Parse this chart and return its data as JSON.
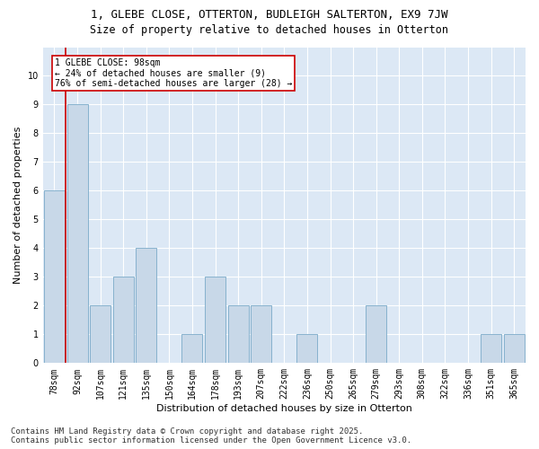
{
  "title": "1, GLEBE CLOSE, OTTERTON, BUDLEIGH SALTERTON, EX9 7JW",
  "subtitle": "Size of property relative to detached houses in Otterton",
  "xlabel": "Distribution of detached houses by size in Otterton",
  "ylabel": "Number of detached properties",
  "categories": [
    "78sqm",
    "92sqm",
    "107sqm",
    "121sqm",
    "135sqm",
    "150sqm",
    "164sqm",
    "178sqm",
    "193sqm",
    "207sqm",
    "222sqm",
    "236sqm",
    "250sqm",
    "265sqm",
    "279sqm",
    "293sqm",
    "308sqm",
    "322sqm",
    "336sqm",
    "351sqm",
    "365sqm"
  ],
  "values": [
    6,
    9,
    2,
    3,
    4,
    0,
    1,
    3,
    2,
    2,
    0,
    1,
    0,
    0,
    2,
    0,
    0,
    0,
    0,
    1,
    1
  ],
  "bar_color": "#c8d8e8",
  "bar_edge_color": "#7aaac8",
  "highlight_line_color": "#cc0000",
  "annotation_text": "1 GLEBE CLOSE: 98sqm\n← 24% of detached houses are smaller (9)\n76% of semi-detached houses are larger (28) →",
  "annotation_box_color": "#ffffff",
  "annotation_box_edge_color": "#cc0000",
  "ylim": [
    0,
    11
  ],
  "yticks": [
    0,
    1,
    2,
    3,
    4,
    5,
    6,
    7,
    8,
    9,
    10,
    11
  ],
  "footnote": "Contains HM Land Registry data © Crown copyright and database right 2025.\nContains public sector information licensed under the Open Government Licence v3.0.",
  "title_fontsize": 9,
  "subtitle_fontsize": 8.5,
  "axis_label_fontsize": 8,
  "tick_fontsize": 7,
  "footnote_fontsize": 6.5
}
